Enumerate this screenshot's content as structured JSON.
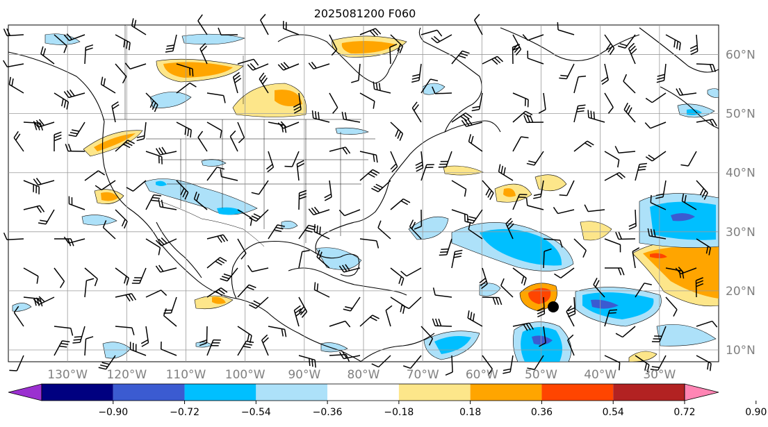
{
  "title": "2025081200 F060",
  "map": {
    "type": "forecast-anomaly-map",
    "lon_range": [
      -140,
      -20
    ],
    "lat_range": [
      8,
      65
    ],
    "grid": true,
    "wind_barbs": true,
    "storm_marker": {
      "lon": -49,
      "lat": 17,
      "color": "#000000"
    },
    "lon_labels": [
      "130°W",
      "120°W",
      "110°W",
      "100°W",
      "90°W",
      "80°W",
      "70°W",
      "60°W",
      "50°W",
      "40°W",
      "30°W"
    ],
    "lat_labels": [
      "60°N",
      "50°N",
      "40°N",
      "30°N",
      "20°N",
      "10°N"
    ]
  },
  "colorbar": {
    "position": "bottom",
    "ticks": [
      "−0.90",
      "−0.72",
      "−0.54",
      "−0.36",
      "−0.18",
      "0.18",
      "0.36",
      "0.54",
      "0.72",
      "0.90"
    ],
    "colors": [
      "#9b30d0",
      "#000080",
      "#3b5bd1",
      "#00bfff",
      "#ade1f9",
      "#ffffff",
      "#fde68a",
      "#ffa500",
      "#ff4500",
      "#b22222",
      "#ff85b4"
    ]
  }
}
